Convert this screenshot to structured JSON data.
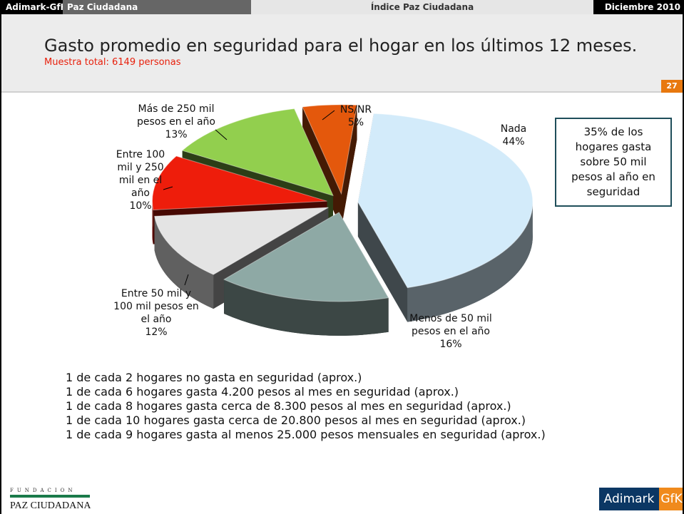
{
  "header": {
    "brand": "Adimark-GfK",
    "client": "Paz Ciudadana",
    "study": "Índice Paz Ciudadana",
    "date": "Diciembre 2010"
  },
  "title": "Gasto promedio en seguridad para el hogar en los últimos 12 meses.",
  "subtitle": "Muestra total: 6149 personas",
  "page_number": "27",
  "chart_data": {
    "type": "pie",
    "categories": [
      "Nada",
      "Menos de 50 mil pesos en el año",
      "Entre 50 mil y 100 mil pesos en el año",
      "Entre 100 mil y 250 mil en el año",
      "Más de 250 mil pesos en el año",
      "NS/NR"
    ],
    "values": [
      44,
      16,
      12,
      10,
      13,
      5
    ],
    "value_labels": [
      "44%",
      "16%",
      "12%",
      "10%",
      "13%",
      "5%"
    ],
    "colors": [
      "#d3ebfa",
      "#8ea9a5",
      "#e4e4e4",
      "#ee1d0b",
      "#92cf4e",
      "#e4580c"
    ]
  },
  "callout": "35% de los hogares gasta sobre 50 mil pesos al año en seguridad",
  "notes": [
    "1 de cada 2 hogares no gasta en seguridad (aprox.)",
    "1 de cada 6 hogares gasta 4.200 pesos al mes en seguridad (aprox.)",
    "1 de cada 8 hogares gasta cerca de 8.300 pesos al mes en seguridad (aprox.)",
    "1 de cada 10 hogares gasta cerca de 20.800 pesos al mes en seguridad (aprox.)",
    "1 de cada 9 hogares gasta al menos 25.000 pesos mensuales en seguridad (aprox.)"
  ],
  "footer": {
    "foundation_top": "FUNDACION",
    "foundation": "PAZ CIUDADANA",
    "logo_left": "Adimark",
    "logo_right": "GfK"
  }
}
